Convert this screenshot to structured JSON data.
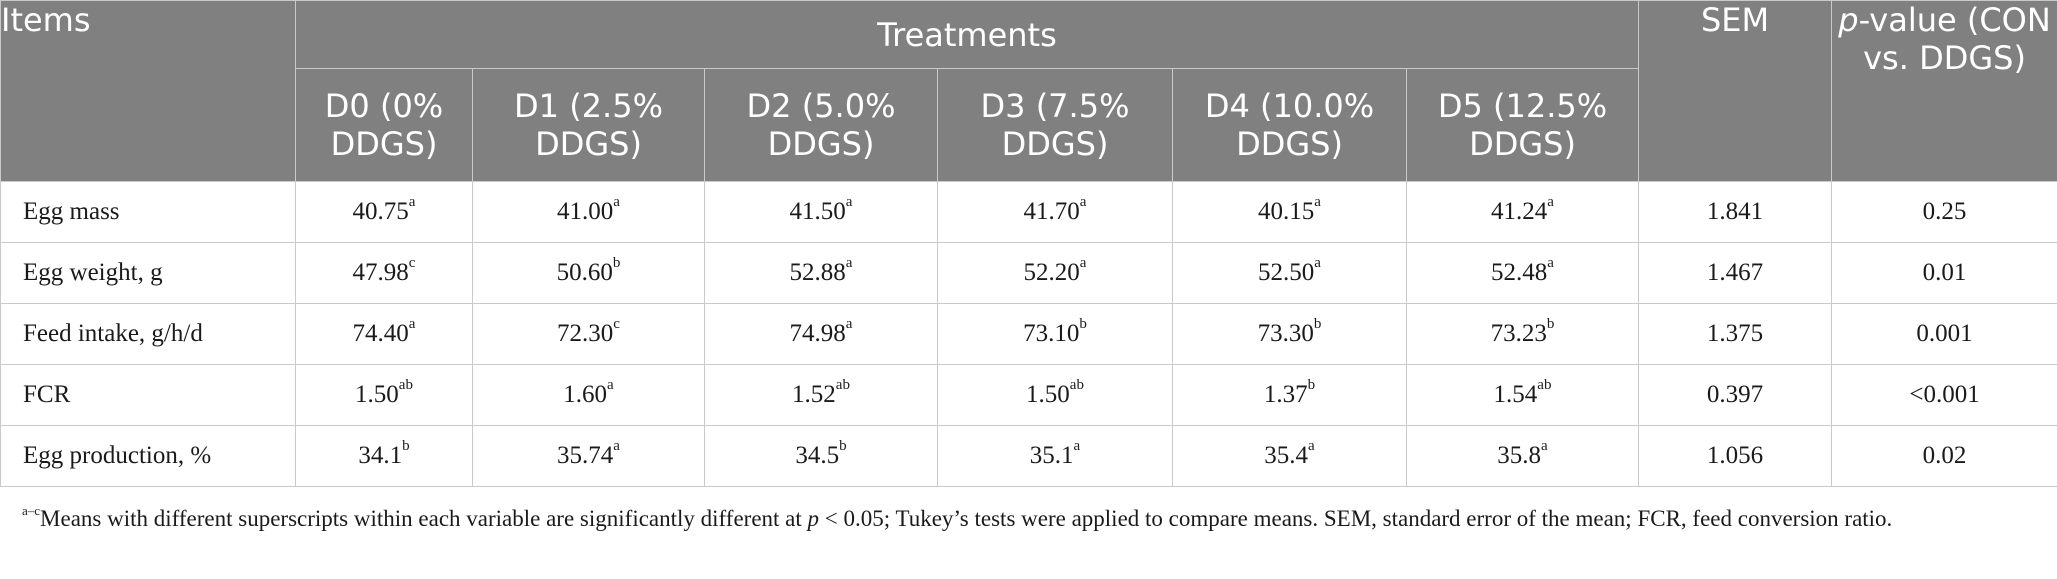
{
  "header": {
    "items": "Items",
    "treatments": "Treatments",
    "sem": "SEM",
    "pvalue_italic": "p",
    "pvalue_rest": "-value (CON vs. DDGS)",
    "treatment_columns": [
      "D0 (0% DDGS)",
      "D1 (2.5% DDGS)",
      "D2 (5.0% DDGS)",
      "D3 (7.5% DDGS)",
      "D4 (10.0% DDGS)",
      "D5 (12.5% DDGS)"
    ]
  },
  "rows": [
    {
      "label": "Egg mass",
      "values": [
        {
          "v": "40.75",
          "s": "a"
        },
        {
          "v": "41.00",
          "s": "a"
        },
        {
          "v": "41.50",
          "s": "a"
        },
        {
          "v": "41.70",
          "s": "a"
        },
        {
          "v": "40.15",
          "s": "a"
        },
        {
          "v": "41.24",
          "s": "a"
        }
      ],
      "sem": "1.841",
      "p": "0.25"
    },
    {
      "label": "Egg weight, g",
      "values": [
        {
          "v": "47.98",
          "s": "c"
        },
        {
          "v": "50.60",
          "s": "b"
        },
        {
          "v": "52.88",
          "s": "a"
        },
        {
          "v": "52.20",
          "s": "a"
        },
        {
          "v": "52.50",
          "s": "a"
        },
        {
          "v": "52.48",
          "s": "a"
        }
      ],
      "sem": "1.467",
      "p": "0.01"
    },
    {
      "label": "Feed intake, g/h/d",
      "values": [
        {
          "v": "74.40",
          "s": "a"
        },
        {
          "v": "72.30",
          "s": "c"
        },
        {
          "v": "74.98",
          "s": "a"
        },
        {
          "v": "73.10",
          "s": "b"
        },
        {
          "v": "73.30",
          "s": "b"
        },
        {
          "v": "73.23",
          "s": "b"
        }
      ],
      "sem": "1.375",
      "p": "0.001"
    },
    {
      "label": "FCR",
      "values": [
        {
          "v": "1.50",
          "s": "ab"
        },
        {
          "v": "1.60",
          "s": "a"
        },
        {
          "v": "1.52",
          "s": "ab"
        },
        {
          "v": "1.50",
          "s": "ab"
        },
        {
          "v": "1.37",
          "s": "b"
        },
        {
          "v": "1.54",
          "s": "ab"
        }
      ],
      "sem": "0.397",
      "p": "<0.001"
    },
    {
      "label": "Egg production, %",
      "values": [
        {
          "v": "34.1",
          "s": "b"
        },
        {
          "v": "35.74",
          "s": "a"
        },
        {
          "v": "34.5",
          "s": "b"
        },
        {
          "v": "35.1",
          "s": "a"
        },
        {
          "v": "35.4",
          "s": "a"
        },
        {
          "v": "35.8",
          "s": "a"
        }
      ],
      "sem": "1.056",
      "p": "0.02"
    }
  ],
  "footnote": {
    "sup": "a–c",
    "text1": "Means with different superscripts within each variable are significantly different at ",
    "p_italic": "p",
    "text2": " < 0.05; Tukey’s tests were applied to compare means. SEM, standard error of the mean; FCR, feed conversion ratio."
  }
}
